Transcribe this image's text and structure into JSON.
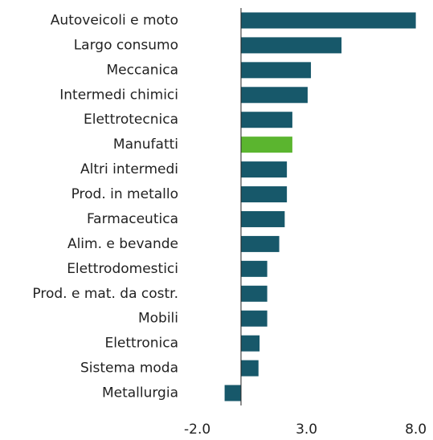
{
  "chart_data": {
    "type": "hbar",
    "categories": [
      "Autoveicoli e moto",
      "Largo consumo",
      "Meccanica",
      "Intermedi chimici",
      "Elettrotecnica",
      "Manufatti",
      "Altri intermedi",
      "Prod. in metallo",
      "Farmaceutica",
      "Alim. e bevande",
      "Elettrodomestici",
      "Prod. e mat. da costr.",
      "Mobili",
      "Elettronica",
      "Sistema moda",
      "Metallurgia"
    ],
    "values": [
      8.0,
      4.6,
      3.2,
      3.05,
      2.35,
      2.35,
      2.1,
      2.1,
      2.0,
      1.75,
      1.2,
      1.2,
      1.2,
      0.85,
      0.8,
      -0.75
    ],
    "colors": [
      "#17586a",
      "#17586a",
      "#17586a",
      "#17586a",
      "#17586a",
      "#5bb52f",
      "#17586a",
      "#17586a",
      "#17586a",
      "#17586a",
      "#17586a",
      "#17586a",
      "#17586a",
      "#17586a",
      "#17586a",
      "#17586a"
    ],
    "xlim": [
      -2,
      8
    ],
    "xticks": [
      {
        "value": -2,
        "label": "-2.0"
      },
      {
        "value": 3,
        "label": "3.0"
      },
      {
        "value": 8,
        "label": "8.0"
      }
    ]
  }
}
